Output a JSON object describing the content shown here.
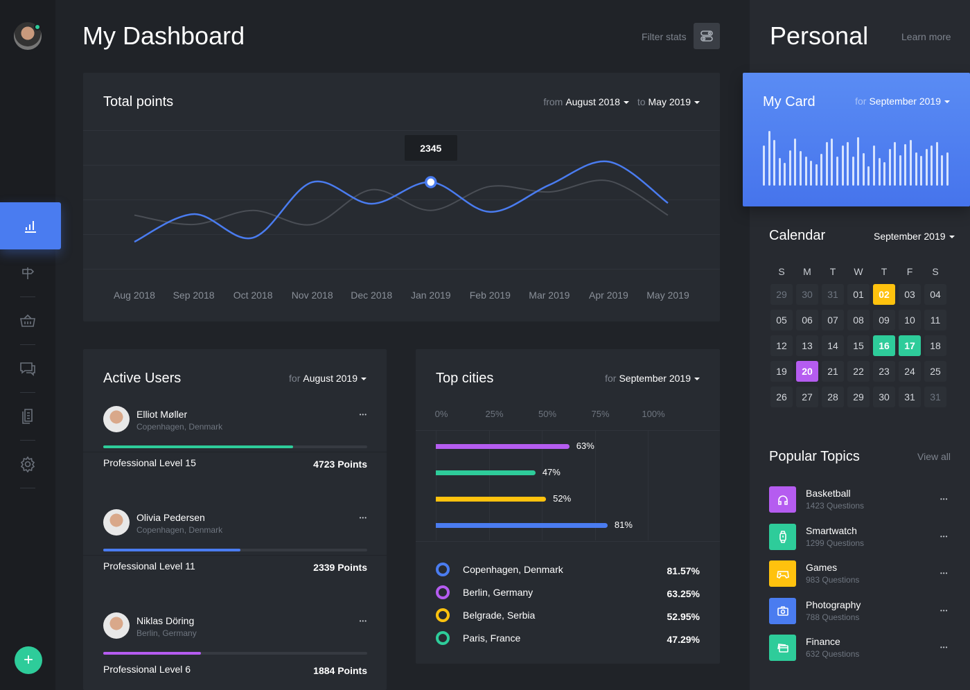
{
  "header": {
    "title": "My Dashboard",
    "filter_label": "Filter stats"
  },
  "sidebar": {
    "items": [
      {
        "icon": "bar-chart-icon",
        "active": true
      },
      {
        "icon": "signpost-icon"
      },
      {
        "icon": "basket-icon"
      },
      {
        "icon": "chat-icon"
      },
      {
        "icon": "documents-icon"
      },
      {
        "icon": "gear-icon"
      }
    ],
    "add_icon": "+"
  },
  "total_points": {
    "title": "Total points",
    "from_label": "from",
    "from_value": "August 2018",
    "to_label": "to",
    "to_value": "May 2019",
    "tooltip": "2345"
  },
  "chart_data": {
    "type": "line",
    "categories": [
      "Aug 2018",
      "Sep 2018",
      "Oct 2018",
      "Nov 2018",
      "Dec 2018",
      "Jan 2019",
      "Feb 2019",
      "Mar 2019",
      "Apr 2019",
      "May 2019"
    ],
    "series": [
      {
        "values": [
          730,
          1480,
          840,
          2345,
          1760,
          2345,
          1540,
          2270,
          2900,
          1780
        ],
        "color": "#4a7cf0"
      },
      {
        "values": [
          1450,
          1200,
          1580,
          1200,
          2140,
          1580,
          2230,
          2080,
          2380,
          1450
        ],
        "color": "#4a4e55"
      }
    ],
    "highlight": {
      "category": "Jan 2019",
      "value": 2345
    },
    "ylim": [
      0,
      3750
    ],
    "grid": true
  },
  "active_users": {
    "title": "Active Users",
    "for_label": "for",
    "period": "August 2019",
    "users": [
      {
        "name": "Elliot Møller",
        "location": "Copenhagen, Denmark",
        "level": "Professional Level 15",
        "points": "4723 Points",
        "progress": 0.72,
        "color": "#2ecc9a"
      },
      {
        "name": "Olivia Pedersen",
        "location": "Copenhagen, Denmark",
        "level": "Professional Level 11",
        "points": "2339 Points",
        "progress": 0.52,
        "color": "#4a7cf0"
      },
      {
        "name": "Niklas Döring",
        "location": "Berlin, Germany",
        "level": "Professional Level 6",
        "points": "1884 Points",
        "progress": 0.37,
        "color": "#b55cf0"
      }
    ]
  },
  "top_cities": {
    "title": "Top cities",
    "for_label": "for",
    "period": "September 2019",
    "ticks": [
      "0%",
      "25%",
      "50%",
      "75%",
      "100%"
    ],
    "bars": [
      {
        "value": 63,
        "label": "63%",
        "color": "#b55cf0"
      },
      {
        "value": 47,
        "label": "47%",
        "color": "#2ecc9a"
      },
      {
        "value": 52,
        "label": "52%",
        "color": "#ffc20e"
      },
      {
        "value": 81,
        "label": "81%",
        "color": "#4a7cf0"
      }
    ],
    "cities": [
      {
        "name": "Copenhagen, Denmark",
        "pct": "81.57%",
        "color": "#4a7cf0"
      },
      {
        "name": "Berlin, Germany",
        "pct": "63.25%",
        "color": "#b55cf0"
      },
      {
        "name": "Belgrade, Serbia",
        "pct": "52.95%",
        "color": "#ffc20e"
      },
      {
        "name": "Paris, France",
        "pct": "47.29%",
        "color": "#2ecc9a"
      }
    ]
  },
  "personal": {
    "title": "Personal",
    "learn_more": "Learn more"
  },
  "my_card": {
    "title": "My Card",
    "for_label": "for",
    "period": "September 2019",
    "bars": [
      72,
      99,
      82,
      50,
      41,
      64,
      85,
      62,
      52,
      45,
      39,
      58,
      79,
      85,
      53,
      72,
      79,
      53,
      88,
      59,
      35,
      72,
      50,
      43,
      66,
      79,
      55,
      75,
      83,
      60,
      54,
      66,
      72,
      79,
      55,
      60
    ]
  },
  "calendar": {
    "title": "Calendar",
    "period": "September 2019",
    "weekdays": [
      "S",
      "M",
      "T",
      "W",
      "T",
      "F",
      "S"
    ],
    "days": [
      [
        "29",
        "30",
        "31",
        "01",
        "02",
        "03",
        "04"
      ],
      [
        "05",
        "06",
        "07",
        "08",
        "09",
        "10",
        "11"
      ],
      [
        "12",
        "13",
        "14",
        "15",
        "16",
        "17",
        "18"
      ],
      [
        "19",
        "20",
        "21",
        "22",
        "23",
        "24",
        "25"
      ],
      [
        "26",
        "27",
        "28",
        "29",
        "30",
        "31",
        "31"
      ]
    ],
    "dimmed": [
      [
        0,
        0
      ],
      [
        0,
        1
      ],
      [
        0,
        2
      ],
      [
        4,
        6
      ]
    ],
    "highlights": [
      {
        "row": 0,
        "col": 4,
        "color": "#ffc20e"
      },
      {
        "row": 2,
        "col": 4,
        "color": "#2ecc9a"
      },
      {
        "row": 2,
        "col": 5,
        "color": "#2ecc9a"
      },
      {
        "row": 3,
        "col": 1,
        "color": "#b55cf0"
      }
    ]
  },
  "popular_topics": {
    "title": "Popular Topics",
    "view_all": "View all",
    "topics": [
      {
        "name": "Basketball",
        "questions": "1423 Questions",
        "color": "#b55cf0",
        "icon": "headphones-icon"
      },
      {
        "name": "Smartwatch",
        "questions": "1299 Questions",
        "color": "#2ecc9a",
        "icon": "smartwatch-icon"
      },
      {
        "name": "Games",
        "questions": "983 Questions",
        "color": "#ffc20e",
        "icon": "gamepad-icon"
      },
      {
        "name": "Photography",
        "questions": "788 Questions",
        "color": "#4a7cf0",
        "icon": "camera-icon"
      },
      {
        "name": "Finance",
        "questions": "632 Questions",
        "color": "#2ecc9a",
        "icon": "cards-icon"
      }
    ]
  }
}
